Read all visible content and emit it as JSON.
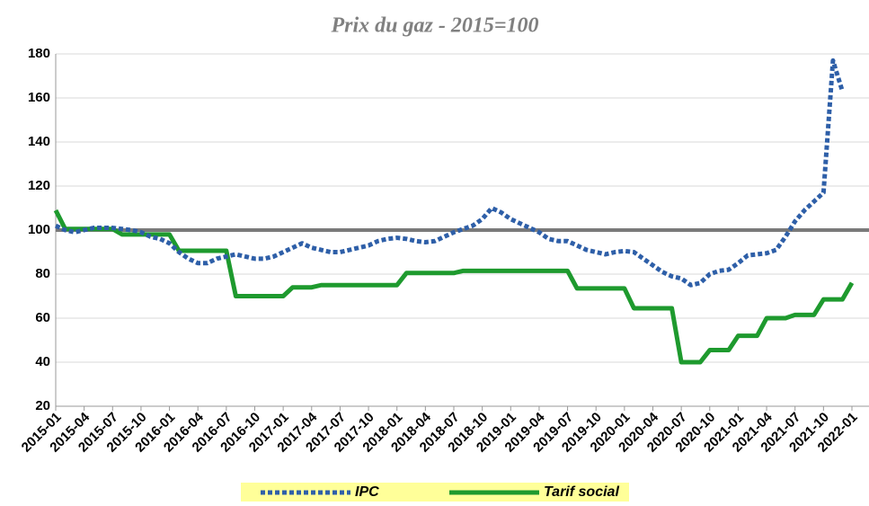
{
  "chart_data": {
    "type": "line",
    "title": "Prix du gaz - 2015=100",
    "categories": [
      "2015-01",
      null,
      null,
      "2015-04",
      null,
      null,
      "2015-07",
      null,
      null,
      "2015-10",
      null,
      null,
      "2016-01",
      null,
      null,
      "2016-04",
      null,
      null,
      "2016-07",
      null,
      null,
      "2016-10",
      null,
      null,
      "2017-01",
      null,
      null,
      "2017-04",
      null,
      null,
      "2017-07",
      null,
      null,
      "2017-10",
      null,
      null,
      "2018-01",
      null,
      null,
      "2018-04",
      null,
      null,
      "2018-07",
      null,
      null,
      "2018-10",
      null,
      null,
      "2019-01",
      null,
      null,
      "2019-04",
      null,
      null,
      "2019-07",
      null,
      null,
      "2019-10",
      null,
      null,
      "2020-01",
      null,
      null,
      "2020-04",
      null,
      null,
      "2020-07",
      null,
      null,
      "2020-10",
      null,
      null,
      "2021-01",
      null,
      null,
      "2021-04",
      null,
      null,
      "2021-07",
      null,
      null,
      "2021-10",
      null,
      null,
      "2022-01"
    ],
    "series": [
      {
        "name": "IPC",
        "color": "#2e5fa8",
        "dashed": true,
        "values": [
          102,
          100,
          99,
          100,
          101,
          101,
          101,
          100.5,
          100,
          99,
          97,
          96,
          94,
          90,
          87,
          85,
          85,
          87,
          88,
          89,
          88,
          87,
          87,
          88,
          90,
          92,
          94,
          92,
          91,
          90,
          90,
          91,
          92,
          93,
          95,
          96,
          96.5,
          96,
          95,
          94.5,
          95,
          97,
          99,
          100.5,
          102,
          105,
          110,
          108,
          105,
          103,
          101,
          99,
          96,
          95,
          95,
          93,
          91,
          90,
          89,
          90,
          90.5,
          90,
          87,
          84,
          81,
          79,
          78,
          75,
          76,
          80,
          81.5,
          82,
          85,
          88.5,
          89,
          89.5,
          91,
          97,
          104,
          109,
          113,
          117,
          177,
          163,
          null
        ]
      },
      {
        "name": "Tarif social",
        "color": "#1e9a2e",
        "dashed": false,
        "values": [
          109,
          100.5,
          100.5,
          100.5,
          100.5,
          100.5,
          100.5,
          98,
          98,
          98,
          98,
          98,
          98,
          90.6,
          90.6,
          90.6,
          90.6,
          90.6,
          90.6,
          70,
          70,
          70,
          70,
          70,
          70,
          74,
          74,
          74,
          75,
          75,
          75,
          75,
          75,
          75,
          75,
          75,
          75,
          80.5,
          80.5,
          80.5,
          80.5,
          80.5,
          80.5,
          81.5,
          81.5,
          81.5,
          81.5,
          81.5,
          81.5,
          81.5,
          81.5,
          81.5,
          81.5,
          81.5,
          81.5,
          73.5,
          73.5,
          73.5,
          73.5,
          73.5,
          73.5,
          64.5,
          64.5,
          64.5,
          64.5,
          64.5,
          40,
          40,
          40,
          45.5,
          45.5,
          45.5,
          52,
          52,
          52,
          60,
          60,
          60,
          61.5,
          61.5,
          61.5,
          68.5,
          68.5,
          68.5,
          76
        ]
      }
    ],
    "reference_line": {
      "value": 100,
      "color": "#7a7a7a"
    },
    "ylim": [
      20,
      180
    ],
    "yticks": [
      20,
      40,
      60,
      80,
      100,
      120,
      140,
      160,
      180
    ],
    "grid": true,
    "legend": "bottom"
  }
}
